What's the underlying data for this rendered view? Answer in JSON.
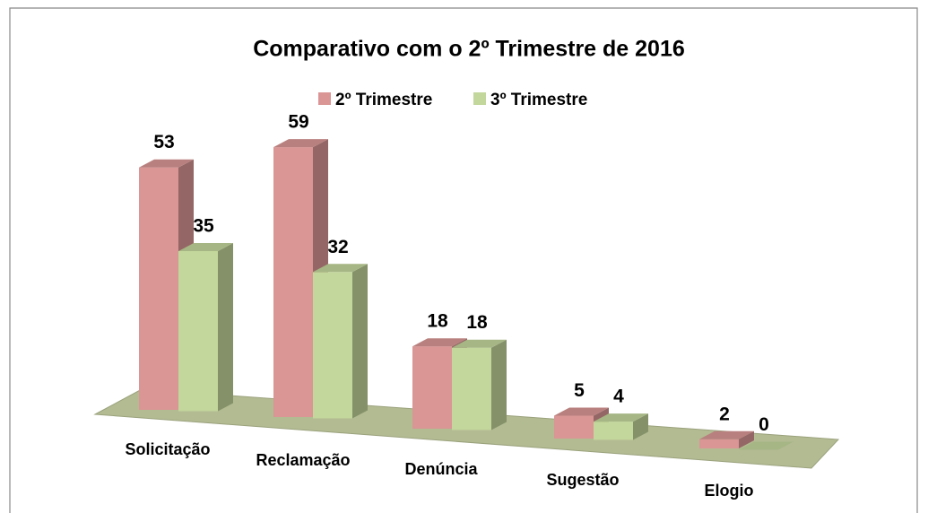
{
  "chart_data": {
    "type": "bar3d",
    "title": "Comparativo com o 2º Trimestre de 2016",
    "categories": [
      "Solicitação",
      "Reclamação",
      "Denúncia",
      "Sugestão",
      "Elogio"
    ],
    "series": [
      {
        "name": "2º Trimestre",
        "color": "#d99694",
        "values": [
          53,
          59,
          18,
          5,
          2
        ]
      },
      {
        "name": "3º Trimestre",
        "color": "#c3d69b",
        "values": [
          35,
          32,
          18,
          4,
          0
        ]
      }
    ],
    "legend": "top"
  }
}
